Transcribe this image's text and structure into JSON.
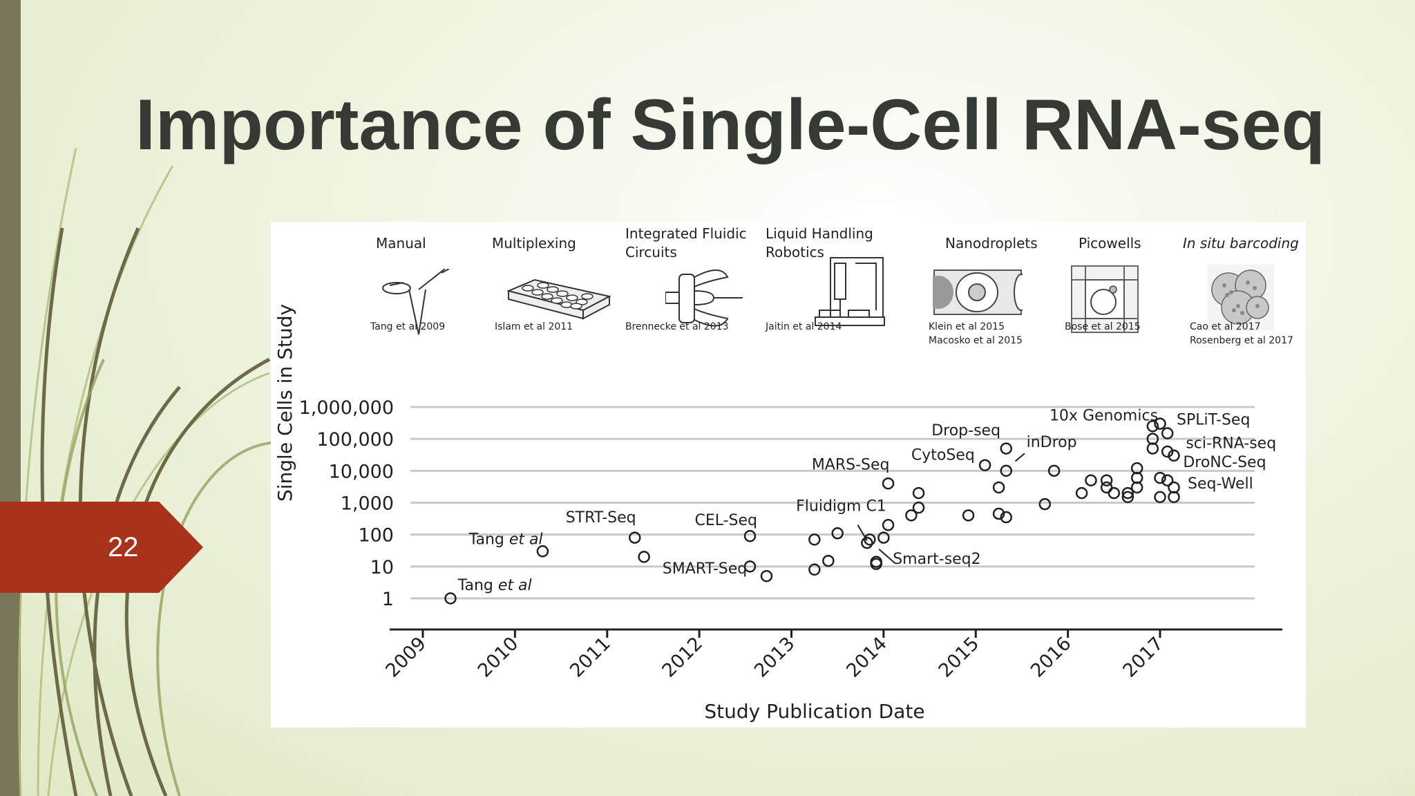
{
  "slide": {
    "title": "Importance of Single-Cell RNA-seq",
    "page_number": "22",
    "accent_color": "#a8321a",
    "bar_color": "#7a7659"
  },
  "techniques": [
    {
      "name": "Manual",
      "citation": "Tang et al 2009",
      "icon": "tube-pipette-icon"
    },
    {
      "name": "Multiplexing",
      "citation": "Islam et al 2011",
      "icon": "well-plate-icon"
    },
    {
      "name": "Integrated Fluidic\nCircuits",
      "citation": "Brennecke et al 2013",
      "icon": "fluidic-circuit-icon"
    },
    {
      "name": "Liquid Handling\nRobotics",
      "citation": "Jaitin et al 2014",
      "icon": "robot-icon"
    },
    {
      "name": "Nanodroplets",
      "citation": "Klein et al 2015\nMacosko et al 2015",
      "icon": "droplet-icon"
    },
    {
      "name": "Picowells",
      "citation": "Bose et al 2015",
      "icon": "picowell-icon"
    },
    {
      "name": "In situ barcoding",
      "citation": "Cao et al 2017\nRosenberg et al 2017",
      "icon": "cells-micrograph-icon"
    }
  ],
  "chart_data": {
    "type": "scatter",
    "xlabel": "Study Publication Date",
    "ylabel": "Single Cells in Study",
    "x_ticks": [
      "2009",
      "2010",
      "2011",
      "2012",
      "2013",
      "2014",
      "2015",
      "2016",
      "2017"
    ],
    "y_ticks": [
      "1",
      "10",
      "100",
      "1,000",
      "10,000",
      "100,000",
      "1,000,000"
    ],
    "y_scale": "log",
    "xlim": [
      2008.6,
      2017.95
    ],
    "ylim": [
      1,
      1000000
    ],
    "grid": true,
    "points": [
      {
        "x": 2009.3,
        "y": 1
      },
      {
        "x": 2010.3,
        "y": 30
      },
      {
        "x": 2011.3,
        "y": 80
      },
      {
        "x": 2011.4,
        "y": 20
      },
      {
        "x": 2012.55,
        "y": 90
      },
      {
        "x": 2012.55,
        "y": 10
      },
      {
        "x": 2012.73,
        "y": 5
      },
      {
        "x": 2013.25,
        "y": 70
      },
      {
        "x": 2013.25,
        "y": 8
      },
      {
        "x": 2013.4,
        "y": 15
      },
      {
        "x": 2013.5,
        "y": 110
      },
      {
        "x": 2013.82,
        "y": 55
      },
      {
        "x": 2013.85,
        "y": 70
      },
      {
        "x": 2013.92,
        "y": 14
      },
      {
        "x": 2013.92,
        "y": 12
      },
      {
        "x": 2014.0,
        "y": 80
      },
      {
        "x": 2014.05,
        "y": 200
      },
      {
        "x": 2014.05,
        "y": 4000
      },
      {
        "x": 2014.3,
        "y": 400
      },
      {
        "x": 2014.38,
        "y": 700
      },
      {
        "x": 2014.38,
        "y": 2000
      },
      {
        "x": 2014.92,
        "y": 400
      },
      {
        "x": 2015.1,
        "y": 15000
      },
      {
        "x": 2015.25,
        "y": 3000
      },
      {
        "x": 2015.25,
        "y": 450
      },
      {
        "x": 2015.33,
        "y": 350
      },
      {
        "x": 2015.33,
        "y": 50000
      },
      {
        "x": 2015.33,
        "y": 10000
      },
      {
        "x": 2015.75,
        "y": 900
      },
      {
        "x": 2015.85,
        "y": 10000
      },
      {
        "x": 2016.15,
        "y": 2000
      },
      {
        "x": 2016.25,
        "y": 5000
      },
      {
        "x": 2016.42,
        "y": 5000
      },
      {
        "x": 2016.42,
        "y": 3000
      },
      {
        "x": 2016.5,
        "y": 2000
      },
      {
        "x": 2016.65,
        "y": 2000
      },
      {
        "x": 2016.65,
        "y": 1500
      },
      {
        "x": 2016.75,
        "y": 12000
      },
      {
        "x": 2016.75,
        "y": 6000
      },
      {
        "x": 2016.75,
        "y": 3000
      },
      {
        "x": 2016.92,
        "y": 250000
      },
      {
        "x": 2016.92,
        "y": 100000
      },
      {
        "x": 2016.92,
        "y": 50000
      },
      {
        "x": 2017.0,
        "y": 300000
      },
      {
        "x": 2017.0,
        "y": 6000
      },
      {
        "x": 2017.0,
        "y": 1500
      },
      {
        "x": 2017.08,
        "y": 150000
      },
      {
        "x": 2017.08,
        "y": 40000
      },
      {
        "x": 2017.08,
        "y": 5000
      },
      {
        "x": 2017.15,
        "y": 30000
      },
      {
        "x": 2017.15,
        "y": 3000
      },
      {
        "x": 2017.15,
        "y": 1500
      }
    ],
    "annotations": [
      {
        "text": "Tang et al",
        "x": 2009.38,
        "y": 1.8
      },
      {
        "text": "Tang et al",
        "x": 2009.5,
        "y": 50
      },
      {
        "text": "STRT-Seq",
        "x": 2010.55,
        "y": 240
      },
      {
        "text": "CEL-Seq",
        "x": 2011.95,
        "y": 200
      },
      {
        "text": "SMART-Seq",
        "x": 2011.6,
        "y": 6
      },
      {
        "text": "Fluidigm C1",
        "x": 2013.05,
        "y": 550
      },
      {
        "text": "Smart-seq2",
        "x": 2014.1,
        "y": 12
      },
      {
        "text": "MARS-Seq",
        "x": 2013.22,
        "y": 11000
      },
      {
        "text": "CytoSeq",
        "x": 2014.3,
        "y": 22000
      },
      {
        "text": "Drop-seq",
        "x": 2014.52,
        "y": 130000
      },
      {
        "text": "inDrop",
        "x": 2015.55,
        "y": 55000
      },
      {
        "text": "10x Genomics",
        "x": 2015.8,
        "y": 380000
      },
      {
        "text": "SPLiT-Seq",
        "x": 2017.18,
        "y": 280000
      },
      {
        "text": "sci-RNA-seq",
        "x": 2017.28,
        "y": 52000
      },
      {
        "text": "DroNC-Seq",
        "x": 2017.25,
        "y": 13000
      },
      {
        "text": "Seq-Well",
        "x": 2017.3,
        "y": 2800
      }
    ],
    "leader_lines": [
      {
        "x1": 2013.72,
        "y1": 200,
        "x2": 2013.82,
        "y2": 65
      },
      {
        "x1": 2014.12,
        "y1": 13,
        "x2": 2013.95,
        "y2": 35
      },
      {
        "x1": 2015.43,
        "y1": 20000,
        "x2": 2015.53,
        "y2": 35000
      }
    ]
  }
}
